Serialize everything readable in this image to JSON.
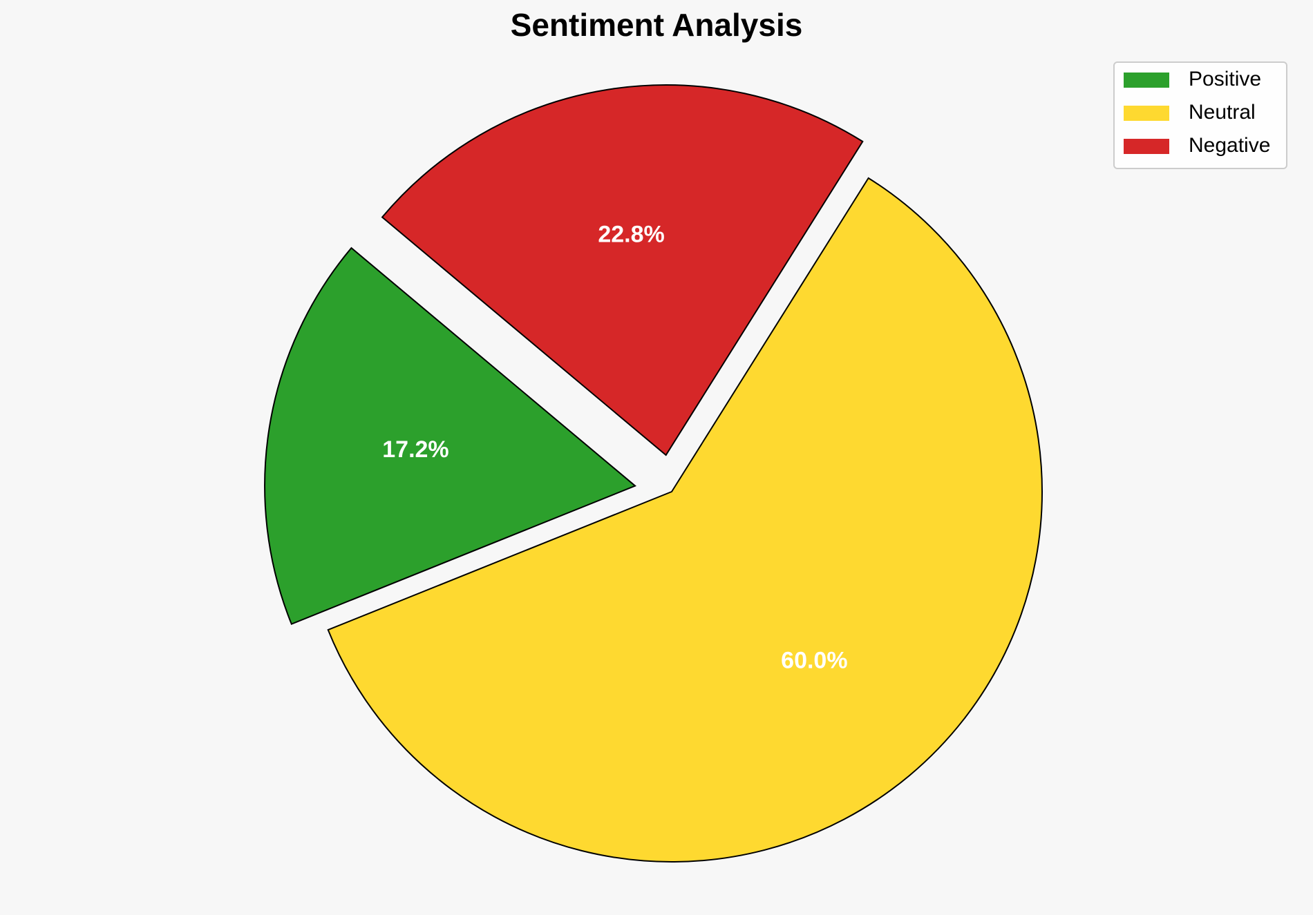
{
  "chart_data": {
    "type": "pie",
    "title": "Sentiment Analysis",
    "categories": [
      "Positive",
      "Neutral",
      "Negative"
    ],
    "values": [
      17.2,
      60.0,
      22.8
    ],
    "value_labels": [
      "17.2%",
      "60.0%",
      "22.8%"
    ],
    "colors": [
      "#2ca02c",
      "#fed930",
      "#d62728"
    ],
    "legend": "upper right"
  }
}
